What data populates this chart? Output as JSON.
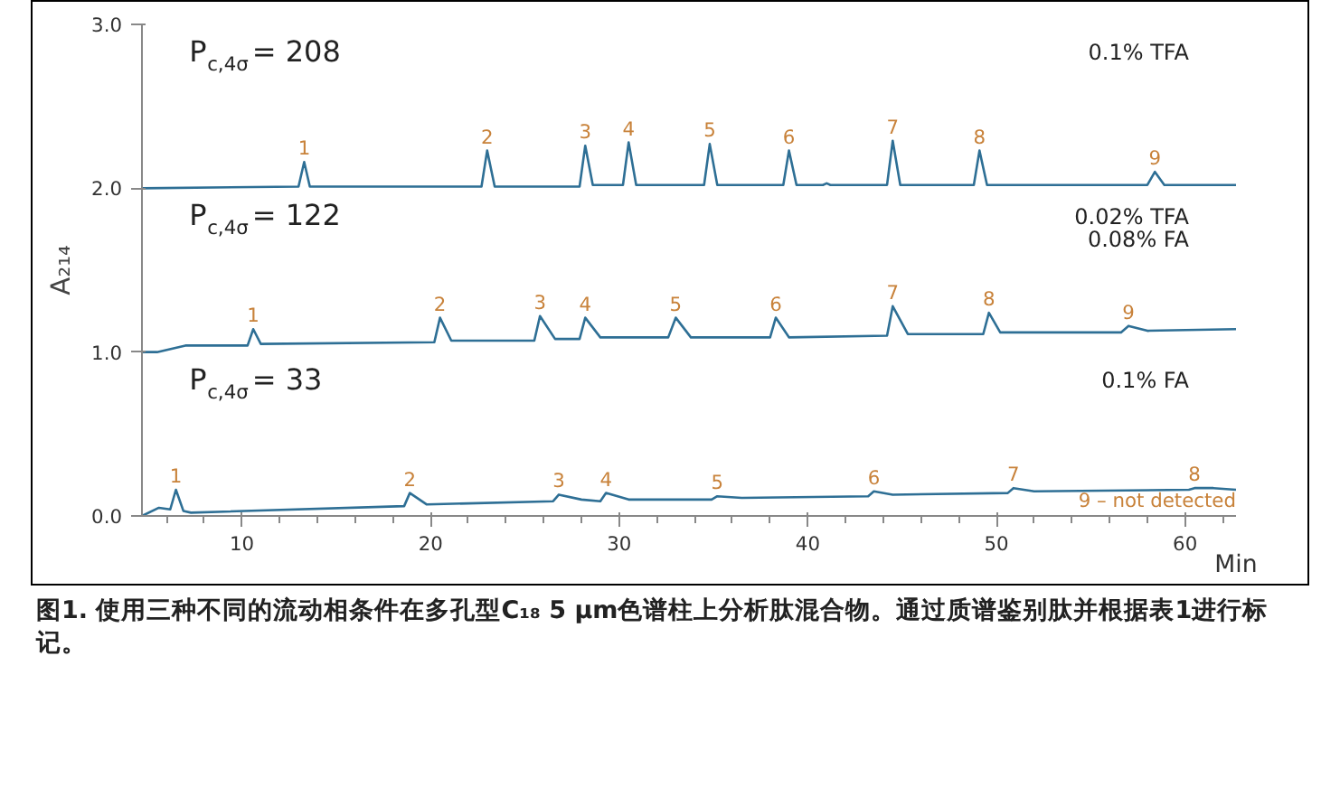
{
  "chart_data": {
    "type": "line",
    "xlabel": "Min",
    "ylabel": "A₂₁₄",
    "xlim": [
      4.7,
      62.7
    ],
    "ylim": [
      0,
      3
    ],
    "xticks": [
      10,
      20,
      30,
      40,
      50,
      60
    ],
    "yticks": [
      {
        "value": 0,
        "label": "0.0"
      },
      {
        "value": 1,
        "label": "1.0"
      },
      {
        "value": 2,
        "label": "2.0"
      },
      {
        "value": 3,
        "label": "3.0"
      }
    ],
    "grid": false,
    "marker": "none",
    "line_style": "solid",
    "series": [
      {
        "color": "#2e6f95",
        "x": [
          4.7,
          13.0,
          13.3,
          13.6,
          22.7,
          23.0,
          23.4,
          27.9,
          28.2,
          28.6,
          30.2,
          30.5,
          30.9,
          34.5,
          34.8,
          35.2,
          38.7,
          39.0,
          39.4,
          40.8,
          41.0,
          41.2,
          44.2,
          44.5,
          44.9,
          48.8,
          49.1,
          49.5,
          58.0,
          58.4,
          58.9,
          62.7
        ],
        "values": [
          2.0,
          2.01,
          2.16,
          2.01,
          2.01,
          2.23,
          2.01,
          2.01,
          2.26,
          2.02,
          2.02,
          2.28,
          2.02,
          2.02,
          2.27,
          2.02,
          2.02,
          2.23,
          2.02,
          2.02,
          2.03,
          2.02,
          2.02,
          2.29,
          2.02,
          2.02,
          2.23,
          2.02,
          2.02,
          2.1,
          2.02,
          2.02
        ]
      },
      {
        "color": "#2e6f95",
        "x": [
          4.7,
          5.5,
          7.0,
          10.3,
          10.6,
          11.0,
          20.2,
          20.5,
          21.1,
          25.5,
          25.8,
          26.6,
          27.9,
          28.2,
          29.0,
          32.6,
          33.0,
          33.8,
          38.0,
          38.3,
          39.0,
          44.2,
          44.5,
          45.3,
          49.3,
          49.6,
          50.2,
          56.6,
          57.0,
          58.0,
          62.7
        ],
        "values": [
          1.0,
          1.0,
          1.04,
          1.04,
          1.14,
          1.05,
          1.06,
          1.21,
          1.07,
          1.07,
          1.22,
          1.08,
          1.08,
          1.21,
          1.09,
          1.09,
          1.21,
          1.09,
          1.09,
          1.21,
          1.09,
          1.1,
          1.28,
          1.11,
          1.11,
          1.24,
          1.12,
          1.12,
          1.16,
          1.13,
          1.14
        ]
      },
      {
        "color": "#2e6f95",
        "x": [
          4.7,
          5.6,
          6.2,
          6.5,
          6.9,
          7.3,
          18.6,
          18.9,
          19.8,
          26.5,
          26.8,
          28.0,
          29.0,
          29.3,
          30.5,
          34.9,
          35.2,
          36.5,
          43.2,
          43.5,
          44.5,
          50.6,
          50.9,
          52.0,
          60.2,
          60.5,
          61.5,
          62.7
        ],
        "values": [
          0.0,
          0.05,
          0.04,
          0.16,
          0.03,
          0.02,
          0.06,
          0.14,
          0.07,
          0.09,
          0.13,
          0.1,
          0.09,
          0.14,
          0.1,
          0.1,
          0.12,
          0.11,
          0.12,
          0.15,
          0.13,
          0.14,
          0.17,
          0.15,
          0.16,
          0.17,
          0.17,
          0.16
        ]
      }
    ],
    "annotations": [
      "P$_{c,4σ}$= 208",
      "0.1% TFA",
      "P$_{c,4σ}$= 122",
      "0.02% TFA\n0.08% FA",
      "P$_{c,4σ}$= 33",
      "0.1% FA",
      "9 – not detected",
      "图1. 使用三种不同的流动相条件在多孔型C₁₈ 5 µm色谱柱上分析肽混合物。通过质谱鉴别肽并根据表1进行标记。",
      {
        "text": "1",
        "x": 13.3,
        "y": 2.16
      },
      {
        "text": "2",
        "x": 23.0,
        "y": 2.23
      },
      {
        "text": "3",
        "x": 28.2,
        "y": 2.26
      },
      {
        "text": "4",
        "x": 30.5,
        "y": 2.28
      },
      {
        "text": "5",
        "x": 34.8,
        "y": 2.27
      },
      {
        "text": "6",
        "x": 39.0,
        "y": 2.23
      },
      {
        "text": "7",
        "x": 44.5,
        "y": 2.29
      },
      {
        "text": "8",
        "x": 49.1,
        "y": 2.23
      },
      {
        "text": "9",
        "x": 58.4,
        "y": 2.1
      },
      {
        "text": "1",
        "x": 10.6,
        "y": 1.14
      },
      {
        "text": "2",
        "x": 20.5,
        "y": 1.21
      },
      {
        "text": "3",
        "x": 25.8,
        "y": 1.22
      },
      {
        "text": "4",
        "x": 28.2,
        "y": 1.21
      },
      {
        "text": "5",
        "x": 33.0,
        "y": 1.21
      },
      {
        "text": "6",
        "x": 38.3,
        "y": 1.21
      },
      {
        "text": "7",
        "x": 44.5,
        "y": 1.28
      },
      {
        "text": "8",
        "x": 49.6,
        "y": 1.24
      },
      {
        "text": "9",
        "x": 57.0,
        "y": 1.16
      },
      {
        "text": "1",
        "x": 6.5,
        "y": 0.16
      },
      {
        "text": "2",
        "x": 18.9,
        "y": 0.14
      },
      {
        "text": "3",
        "x": 26.8,
        "y": 0.13
      },
      {
        "text": "4",
        "x": 29.3,
        "y": 0.14
      },
      {
        "text": "5",
        "x": 35.2,
        "y": 0.12
      },
      {
        "text": "6",
        "x": 43.5,
        "y": 0.15
      },
      {
        "text": "7",
        "x": 50.9,
        "y": 0.17
      },
      {
        "text": "8",
        "x": 60.5,
        "y": 0.17
      }
    ]
  }
}
